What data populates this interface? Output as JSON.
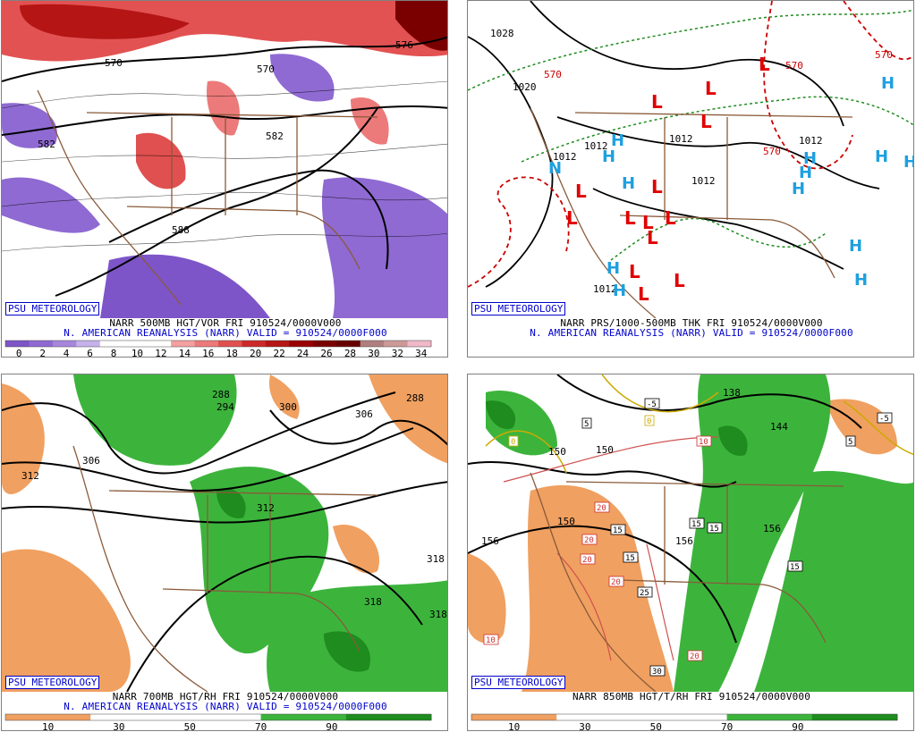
{
  "panels": [
    {
      "id": "tl",
      "badge": "PSU METEOROLOGY",
      "caption_line1": "NARR 500MB HGT/VOR FRI 910524/0000V000",
      "caption_line2": "N. AMERICAN REANALYSIS (NARR) VALID = 910524/0000F000",
      "colorbar": {
        "labels": [
          "0",
          "2",
          "4",
          "6",
          "8",
          "10",
          "12",
          "14",
          "16",
          "18",
          "20",
          "22",
          "24",
          "26",
          "28",
          "30",
          "32",
          "34"
        ],
        "colors": [
          "#7d55c8",
          "#8f6ad2",
          "#a687dc",
          "#c5b2ea",
          "#ffffff",
          "#ffffff",
          "#ffffff",
          "#f4a0a0",
          "#ec7a7a",
          "#e05050",
          "#cc2a2a",
          "#b51515",
          "#990000",
          "#7a0000",
          "#660000",
          "#b08080",
          "#cc9999",
          "#f0b8c8"
        ]
      },
      "contour_labels": [
        "570",
        "582",
        "582",
        "570",
        "576",
        "588"
      ]
    },
    {
      "id": "tr",
      "badge": "PSU METEOROLOGY",
      "caption_line1": "NARR PRS/1000-500MB THK FRI 910524/0000V000",
      "caption_line2": "N. AMERICAN REANALYSIS (NARR) VALID = 910524/0000F000",
      "isobar_labels": [
        "1028",
        "1020",
        "1012",
        "1012",
        "1012",
        "1012",
        "1012",
        "1012"
      ],
      "thickness_labels": [
        "570",
        "570",
        "570",
        "570"
      ],
      "highs": 14,
      "lows": 14
    },
    {
      "id": "bl",
      "badge": "PSU METEOROLOGY",
      "caption_line1": "NARR 700MB HGT/RH FRI 910524/0000V000",
      "caption_line2": "N. AMERICAN REANALYSIS (NARR) VALID = 910524/0000F000",
      "colorbar": {
        "labels": [
          "10",
          "30",
          "50",
          "70",
          "90"
        ],
        "colors": [
          "#f0a060",
          "#ffffff",
          "#ffffff",
          "#3cb43c",
          "#1e8c1e"
        ]
      },
      "contour_labels": [
        "288",
        "294",
        "300",
        "306",
        "306",
        "312",
        "312",
        "318",
        "318",
        "318",
        "288"
      ]
    },
    {
      "id": "br",
      "badge": "PSU METEOROLOGY",
      "caption_line1": "NARR 850MB HGT/T/RH FRI 910524/0000V000",
      "colorbar": {
        "labels": [
          "10",
          "30",
          "50",
          "70",
          "90"
        ],
        "colors": [
          "#f0a060",
          "#ffffff",
          "#ffffff",
          "#3cb43c",
          "#1e8c1e"
        ]
      },
      "height_labels": [
        "138",
        "144",
        "150",
        "150",
        "150",
        "156",
        "156",
        "156"
      ],
      "temp_labels": [
        "-5",
        "-5",
        "0",
        "0",
        "5",
        "5",
        "10",
        "10",
        "15",
        "15",
        "15",
        "15",
        "15",
        "20",
        "20",
        "20",
        "20",
        "20",
        "25",
        "30"
      ]
    }
  ]
}
